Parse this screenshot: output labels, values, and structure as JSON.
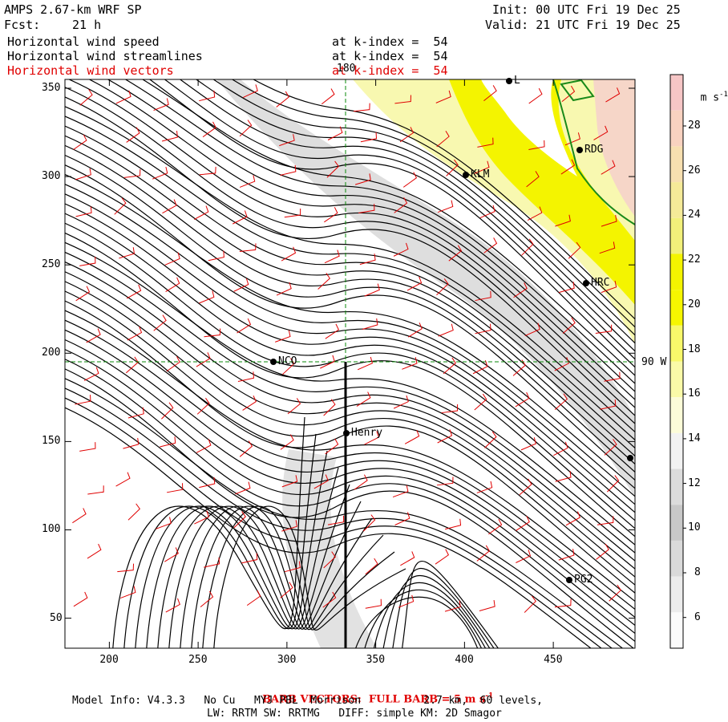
{
  "header": {
    "model": "AMPS 2.67-km WRF SP",
    "fcst_label": "Fcst:",
    "fcst_value": "21 h",
    "init": "Init: 00 UTC Fri 19 Dec 25",
    "valid": "Valid: 21 UTC Fri 19 Dec 25"
  },
  "fields": [
    {
      "name": "Horizontal wind speed",
      "level": "at k-index =  54",
      "color": "#000000"
    },
    {
      "name": "Horizontal wind streamlines",
      "level": "at k-index =  54",
      "color": "#000000"
    },
    {
      "name": "Horizontal wind vectors",
      "level": "at k-index =  54",
      "color": "#e00000"
    }
  ],
  "axes": {
    "x_ticks": [
      "200",
      "250",
      "300",
      "350",
      "400",
      "450"
    ],
    "y_ticks": [
      "350",
      "300",
      "250",
      "200",
      "150",
      "100",
      "50"
    ],
    "meridian_label": "180",
    "parallel_label": "90 W"
  },
  "stations": [
    {
      "id": "LR",
      "label": "L"
    },
    {
      "id": "RDG",
      "label": "RDG"
    },
    {
      "id": "KLM",
      "label": "KLM"
    },
    {
      "id": "HRC",
      "label": "HRC"
    },
    {
      "id": "NCO",
      "label": "NCO"
    },
    {
      "id": "Henry",
      "label": "Henry"
    },
    {
      "id": "PG2",
      "label": "PG2"
    },
    {
      "id": "E",
      "label": ""
    }
  ],
  "colorbar": {
    "unit": "m s",
    "unit_exp": "-1",
    "ticks": [
      "28",
      "26",
      "24",
      "22",
      "20",
      "18",
      "16",
      "14",
      "12",
      "10",
      "8",
      "6"
    ],
    "colors": [
      "#f6c6c6",
      "#f8d2c0",
      "#f7dfb0",
      "#f5ea98",
      "#f2f07a",
      "#f4f400",
      "#f6f600",
      "#f8f86a",
      "#fafaa8",
      "#fcfcd8",
      "#f2f2f2",
      "#dcdcdc",
      "#c8c8c8",
      "#dadada",
      "#ececec",
      "#fbfbfb"
    ]
  },
  "footer": {
    "barb_note": "BARB VECTORS:  FULL BARB = 5 m s",
    "barb_exp": "-1",
    "model_info": "Model Info: V4.3.3   No Cu   MYJ PBL  Morrison          2.7 km,  60 levels,",
    "physics": "LW: RRTM SW: RRTMG   DIFF: simple KM: 2D Smagor"
  }
}
